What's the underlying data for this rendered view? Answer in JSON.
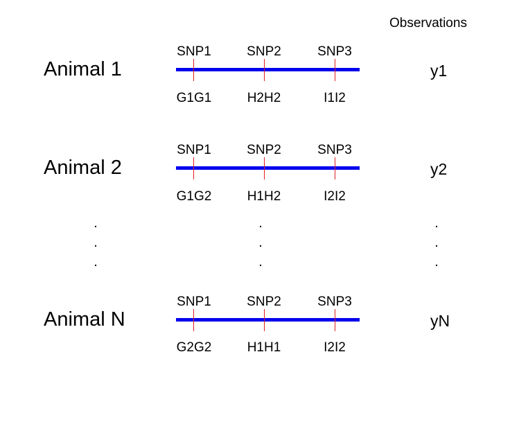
{
  "header": {
    "observations_label": "Observations"
  },
  "colors": {
    "chromosome": "#0000ee",
    "marker": "#e02020"
  },
  "animals": [
    {
      "label": "Animal 1",
      "snps": [
        "SNP1",
        "SNP2",
        "SNP3"
      ],
      "genotypes": [
        "G1G1",
        "H2H2",
        "I1I2"
      ],
      "observation": "y1"
    },
    {
      "label": "Animal 2",
      "snps": [
        "SNP1",
        "SNP2",
        "SNP3"
      ],
      "genotypes": [
        "G1G2",
        "H1H2",
        "I2I2"
      ],
      "observation": "y2"
    },
    {
      "label": "Animal N",
      "snps": [
        "SNP1",
        "SNP2",
        "SNP3"
      ],
      "genotypes": [
        "G2G2",
        "H1H1",
        "I2I2"
      ],
      "observation": "yN"
    }
  ],
  "ellipsis": "."
}
